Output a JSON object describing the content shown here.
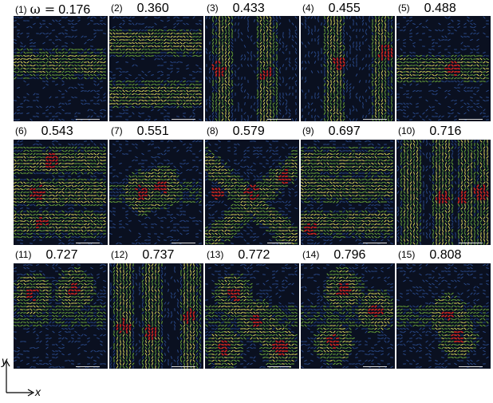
{
  "panels": [
    {
      "index": "(1)",
      "omega_symbol": "ω =",
      "value": "0.176",
      "pattern": "band",
      "band_rows": [
        0.45
      ],
      "hot_rows": [],
      "hot_spots": []
    },
    {
      "index": "(2)",
      "omega_symbol": "",
      "value": "0.360",
      "pattern": "band",
      "band_rows": [
        0.25,
        0.75
      ],
      "hot_rows": [
        0.78
      ],
      "hot_spots": []
    },
    {
      "index": "(3)",
      "omega_symbol": "",
      "value": "0.433",
      "pattern": "columns",
      "band_cols": [
        0.2,
        0.65
      ],
      "hot_spots": [
        [
          0.15,
          0.5
        ],
        [
          0.65,
          0.55
        ]
      ]
    },
    {
      "index": "(4)",
      "omega_symbol": "",
      "value": "0.455",
      "pattern": "columns",
      "band_cols": [
        0.35,
        0.85
      ],
      "hot_spots": [
        [
          0.4,
          0.45
        ],
        [
          0.9,
          0.35
        ]
      ]
    },
    {
      "index": "(5)",
      "omega_symbol": "",
      "value": "0.488",
      "pattern": "band",
      "band_rows": [
        0.5
      ],
      "hot_rows": [],
      "hot_spots": [
        [
          0.6,
          0.5
        ]
      ]
    },
    {
      "index": "(6)",
      "omega_symbol": "",
      "value": "0.543",
      "pattern": "band",
      "band_rows": [
        0.2,
        0.5,
        0.8
      ],
      "hot_rows": [],
      "hot_spots": [
        [
          0.25,
          0.5
        ],
        [
          0.3,
          0.8
        ],
        [
          0.4,
          0.2
        ]
      ]
    },
    {
      "index": "(7)",
      "omega_symbol": "",
      "value": "0.551",
      "pattern": "rings",
      "hot_spots": [
        [
          0.55,
          0.45
        ],
        [
          0.35,
          0.5
        ]
      ]
    },
    {
      "index": "(8)",
      "omega_symbol": "",
      "value": "0.579",
      "pattern": "diagonal",
      "hot_spots": [
        [
          0.15,
          0.5
        ],
        [
          0.5,
          0.5
        ],
        [
          0.85,
          0.35
        ]
      ]
    },
    {
      "index": "(9)",
      "omega_symbol": "",
      "value": "0.697",
      "pattern": "band",
      "band_rows": [
        0.2,
        0.45,
        0.8
      ],
      "hot_rows": [
        0.78
      ],
      "hot_spots": [
        [
          0.1,
          0.85
        ]
      ]
    },
    {
      "index": "(10)",
      "omega_symbol": "",
      "value": "0.716",
      "pattern": "columns",
      "band_cols": [
        0.15,
        0.5,
        0.75,
        0.95
      ],
      "hot_spots": [
        [
          0.5,
          0.55
        ],
        [
          0.72,
          0.55
        ],
        [
          0.9,
          0.5
        ]
      ]
    },
    {
      "index": "(11)",
      "omega_symbol": "",
      "value": "0.727",
      "pattern": "rings",
      "hot_spots": [
        [
          0.2,
          0.3
        ],
        [
          0.65,
          0.25
        ]
      ]
    },
    {
      "index": "(12)",
      "omega_symbol": "",
      "value": "0.737",
      "pattern": "columns",
      "band_cols": [
        0.15,
        0.45,
        0.85
      ],
      "hot_spots": [
        [
          0.15,
          0.6
        ],
        [
          0.45,
          0.65
        ],
        [
          0.85,
          0.5
        ]
      ]
    },
    {
      "index": "(13)",
      "omega_symbol": "",
      "value": "0.772",
      "pattern": "rings",
      "hot_spots": [
        [
          0.3,
          0.3
        ],
        [
          0.55,
          0.55
        ],
        [
          0.2,
          0.8
        ],
        [
          0.8,
          0.8
        ]
      ]
    },
    {
      "index": "(14)",
      "omega_symbol": "",
      "value": "0.796",
      "pattern": "rings",
      "hot_spots": [
        [
          0.35,
          0.75
        ],
        [
          0.45,
          0.25
        ],
        [
          0.8,
          0.45
        ]
      ]
    },
    {
      "index": "(15)",
      "omega_symbol": "",
      "value": "0.808",
      "pattern": "rings",
      "hot_spots": [
        [
          0.65,
          0.7
        ],
        [
          0.55,
          0.5
        ]
      ]
    }
  ],
  "axes": {
    "y_label": "y",
    "x_label": "x"
  },
  "colors": {
    "background": "#0a1020",
    "cold": "#2a4a8a",
    "mid": "#6fae3c",
    "warm": "#e2e25a",
    "hot": "#d8281f"
  }
}
